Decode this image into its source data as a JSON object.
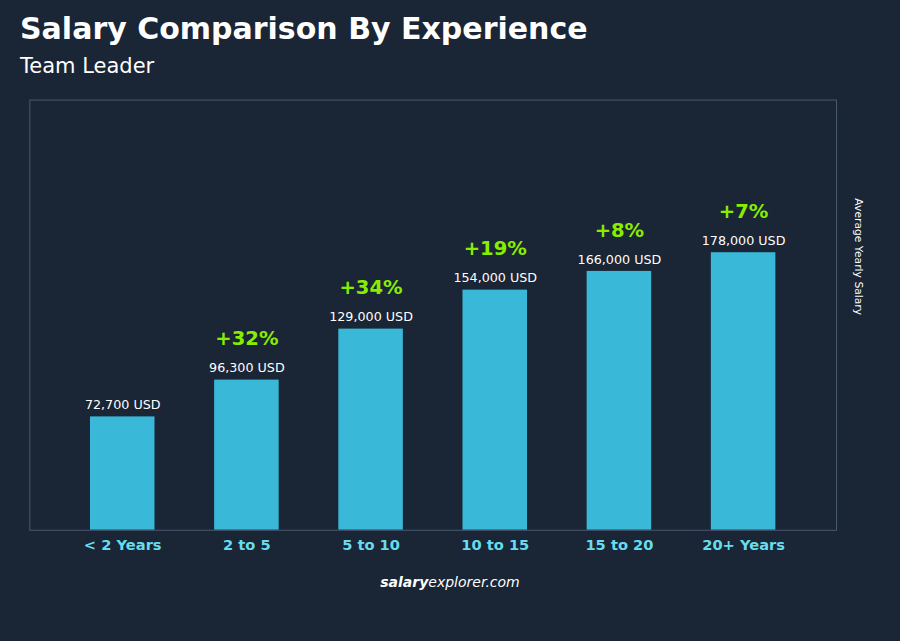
{
  "chart_data": {
    "type": "bar",
    "title": "Salary Comparison By Experience",
    "subtitle": "Team Leader",
    "y_label": "Average Yearly Salary",
    "categories": [
      "< 2 Years",
      "2 to 5",
      "5 to 10",
      "10 to 15",
      "15 to 20",
      "20+ Years"
    ],
    "values": [
      72700,
      96300,
      129000,
      154000,
      166000,
      178000
    ],
    "value_labels": [
      "72,700 USD",
      "96,300 USD",
      "129,000 USD",
      "154,000 USD",
      "166,000 USD",
      "178,000 USD"
    ],
    "data_labels": true,
    "color": "#3ab8d8",
    "ylim": [
      0,
      275900
    ],
    "tick_labels": "x",
    "grid": false,
    "annotations": [
      {
        "category": "2 to 5",
        "text": "+32%"
      },
      {
        "category": "5 to 10",
        "text": "+34%"
      },
      {
        "category": "10 to 15",
        "text": "+19%"
      },
      {
        "category": "15 to 20",
        "text": "+8%"
      },
      {
        "category": "20+ Years",
        "text": "+7%"
      },
      {
        "text": "salary"
      },
      {
        "text": "explorer.com"
      }
    ]
  }
}
